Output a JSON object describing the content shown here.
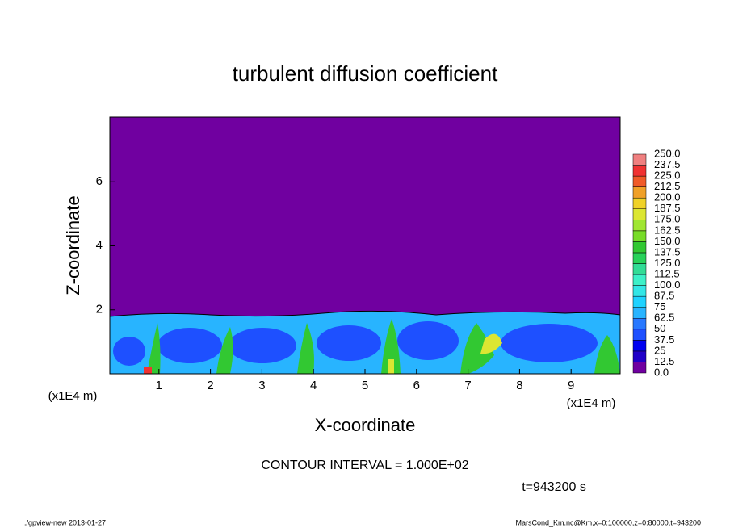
{
  "chart_data": {
    "type": "contour",
    "title": "turbulent diffusion coefficient",
    "x_label": "X-coordinate",
    "y_label": "Z-coordinate",
    "x_unit_label": "(x1E4 m)",
    "xlim": [
      0,
      10
    ],
    "xticks": [
      1,
      2,
      3,
      4,
      5,
      6,
      7,
      8,
      9
    ],
    "ylim": [
      0,
      8
    ],
    "yticks": [
      2,
      4,
      6
    ],
    "colorbar": {
      "levels": [
        {
          "value": 0,
          "label": "0.0"
        },
        12.5,
        25,
        37.5,
        50,
        62.5,
        75,
        87.5,
        {
          "value": 100,
          "label": "100.0"
        },
        112.5,
        {
          "value": 125,
          "label": "125.0"
        },
        137.5,
        {
          "value": 150,
          "label": "150.0"
        },
        162.5,
        {
          "value": 175,
          "label": "175.0"
        },
        187.5,
        {
          "value": 200,
          "label": "200.0"
        },
        212.5,
        {
          "value": 225,
          "label": "225.0"
        },
        237.5,
        {
          "value": 250,
          "label": "250.0"
        }
      ],
      "colors": [
        "#7000a0",
        "#2000c8",
        "#0000f0",
        "#1e50ff",
        "#2878ff",
        "#28b4ff",
        "#1ed2ff",
        "#32e6e6",
        "#3cf0c8",
        "#32dc96",
        "#28d25a",
        "#32c832",
        "#78dc28",
        "#a0e632",
        "#dce632",
        "#f0d228",
        "#f0a028",
        "#f05a28",
        "#f03232",
        "#f08080"
      ]
    },
    "annotation": "CONTOUR INTERVAL = 1.000E+02",
    "time_label": "t=943200 s",
    "footer_left": "./gpview-new  2013-01-27",
    "footer_right": "MarsCond_Km.nc@Km,x=0:100000,z=0:80000,t=943200"
  }
}
